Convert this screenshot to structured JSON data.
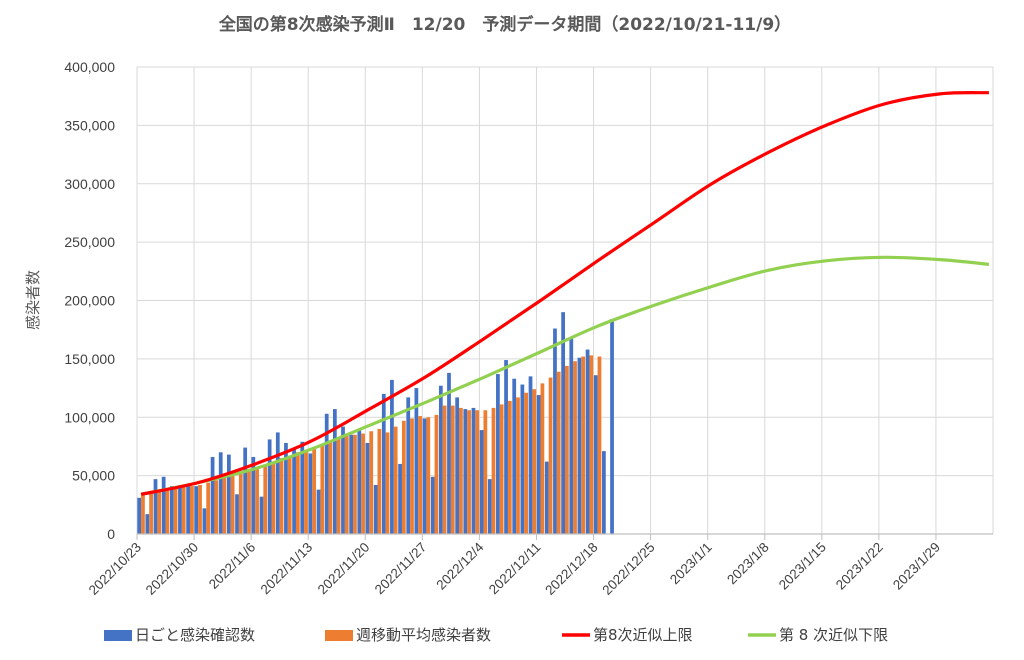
{
  "chart_data": {
    "type": "bar+line",
    "title": "全国の第8次感染予測Ⅱ　12/20　予測データ期間（2022/10/21-11/9）",
    "ylabel": "感染者数",
    "ylim": [
      0,
      400000
    ],
    "y_ticks": [
      "0",
      "50,000",
      "100,000",
      "150,000",
      "200,000",
      "250,000",
      "300,000",
      "350,000",
      "400,000"
    ],
    "x_range": [
      "2022/10/23",
      "2023/2/4"
    ],
    "x_tick_labels": [
      "2022/10/23",
      "2022/10/30",
      "2022/11/6",
      "2022/11/13",
      "2022/11/20",
      "2022/11/27",
      "2022/12/4",
      "2022/12/11",
      "2022/12/18",
      "2022/12/25",
      "2023/1/1",
      "2023/1/8",
      "2023/1/15",
      "2023/1/22",
      "2023/1/29"
    ],
    "grid": true,
    "legend_position": "bottom",
    "colors": {
      "daily": "#4472C4",
      "weekly_avg": "#ED7D31",
      "upper": "#FF0000",
      "lower": "#92D050",
      "grid": "#D9D9D9",
      "axis": "#BFBFBF"
    },
    "series": [
      {
        "name": "日ごと感染確認数",
        "kind": "bar",
        "dates": [
          "2022/10/23",
          "2022/10/24",
          "2022/10/25",
          "2022/10/26",
          "2022/10/27",
          "2022/10/28",
          "2022/10/29",
          "2022/10/30",
          "2022/10/31",
          "2022/11/1",
          "2022/11/2",
          "2022/11/3",
          "2022/11/4",
          "2022/11/5",
          "2022/11/6",
          "2022/11/7",
          "2022/11/8",
          "2022/11/9",
          "2022/11/10",
          "2022/11/11",
          "2022/11/12",
          "2022/11/13",
          "2022/11/14",
          "2022/11/15",
          "2022/11/16",
          "2022/11/17",
          "2022/11/18",
          "2022/11/19",
          "2022/11/20",
          "2022/11/21",
          "2022/11/22",
          "2022/11/23",
          "2022/11/24",
          "2022/11/25",
          "2022/11/26",
          "2022/11/27",
          "2022/11/28",
          "2022/11/29",
          "2022/11/30",
          "2022/12/1",
          "2022/12/2",
          "2022/12/3",
          "2022/12/4",
          "2022/12/5",
          "2022/12/6",
          "2022/12/7",
          "2022/12/8",
          "2022/12/9",
          "2022/12/10",
          "2022/12/11",
          "2022/12/12",
          "2022/12/13",
          "2022/12/14",
          "2022/12/15",
          "2022/12/16",
          "2022/12/17",
          "2022/12/18",
          "2022/12/19",
          "2022/12/20"
        ],
        "values": [
          31000,
          17000,
          47000,
          49000,
          41000,
          42000,
          42000,
          41000,
          22000,
          66000,
          70000,
          68000,
          34000,
          74000,
          66000,
          32000,
          81000,
          87000,
          78000,
          73000,
          79000,
          69000,
          38000,
          103000,
          107000,
          92000,
          85000,
          89000,
          78000,
          42000,
          120000,
          132000,
          60000,
          117000,
          125000,
          99000,
          49000,
          127000,
          138000,
          117000,
          107000,
          108000,
          89000,
          47000,
          137000,
          149000,
          133000,
          128000,
          135000,
          119000,
          62000,
          176000,
          190000,
          168000,
          151000,
          158000,
          136000,
          71000,
          184000
        ]
      },
      {
        "name": "週移動平均感染者数",
        "kind": "bar",
        "dates": [
          "2022/10/23",
          "2022/10/24",
          "2022/10/25",
          "2022/10/26",
          "2022/10/27",
          "2022/10/28",
          "2022/10/29",
          "2022/10/30",
          "2022/10/31",
          "2022/11/1",
          "2022/11/2",
          "2022/11/3",
          "2022/11/4",
          "2022/11/5",
          "2022/11/6",
          "2022/11/7",
          "2022/11/8",
          "2022/11/9",
          "2022/11/10",
          "2022/11/11",
          "2022/11/12",
          "2022/11/13",
          "2022/11/14",
          "2022/11/15",
          "2022/11/16",
          "2022/11/17",
          "2022/11/18",
          "2022/11/19",
          "2022/11/20",
          "2022/11/21",
          "2022/11/22",
          "2022/11/23",
          "2022/11/24",
          "2022/11/25",
          "2022/11/26",
          "2022/11/27",
          "2022/11/28",
          "2022/11/29",
          "2022/11/30",
          "2022/12/1",
          "2022/12/2",
          "2022/12/3",
          "2022/12/4",
          "2022/12/5",
          "2022/12/6",
          "2022/12/7",
          "2022/12/8",
          "2022/12/9",
          "2022/12/10",
          "2022/12/11",
          "2022/12/12",
          "2022/12/13",
          "2022/12/14",
          "2022/12/15",
          "2022/12/16",
          "2022/12/17",
          "2022/12/18"
        ],
        "values": [
          35000,
          36000,
          37000,
          38000,
          39000,
          40000,
          41000,
          42000,
          44000,
          46000,
          48000,
          50000,
          52000,
          54000,
          56000,
          59000,
          62000,
          65000,
          67000,
          70000,
          72000,
          74000,
          76000,
          79000,
          82000,
          84000,
          85000,
          86000,
          88000,
          90000,
          87000,
          92000,
          97000,
          99000,
          101000,
          100000,
          102000,
          110000,
          110000,
          108000,
          106000,
          106000,
          106000,
          108000,
          111000,
          114000,
          117000,
          121000,
          124000,
          129000,
          134000,
          139000,
          144000,
          148000,
          152000,
          153000,
          152000
        ]
      },
      {
        "name": "第8次近似上限",
        "kind": "line",
        "points": [
          [
            "2022/10/23",
            34000
          ],
          [
            "2022/10/30",
            44000
          ],
          [
            "2022/11/6",
            60000
          ],
          [
            "2022/11/13",
            80000
          ],
          [
            "2022/11/20",
            107000
          ],
          [
            "2022/11/27",
            135000
          ],
          [
            "2022/12/4",
            167000
          ],
          [
            "2022/12/11",
            200000
          ],
          [
            "2022/12/18",
            234000
          ],
          [
            "2022/12/25",
            267000
          ],
          [
            "2023/1/1",
            300000
          ],
          [
            "2023/1/8",
            327000
          ],
          [
            "2023/1/15",
            350000
          ],
          [
            "2023/1/22",
            368000
          ],
          [
            "2023/1/29",
            377000
          ],
          [
            "2023/2/4",
            378000
          ]
        ]
      },
      {
        "name": "第 8 次近似下限",
        "kind": "line",
        "points": [
          [
            "2022/10/23",
            34000
          ],
          [
            "2022/10/30",
            44000
          ],
          [
            "2022/11/6",
            56000
          ],
          [
            "2022/11/13",
            73000
          ],
          [
            "2022/11/20",
            93000
          ],
          [
            "2022/11/27",
            113000
          ],
          [
            "2022/12/4",
            134000
          ],
          [
            "2022/12/11",
            156000
          ],
          [
            "2022/12/18",
            178000
          ],
          [
            "2022/12/25",
            196000
          ],
          [
            "2023/1/1",
            212000
          ],
          [
            "2023/1/8",
            226000
          ],
          [
            "2023/1/15",
            234000
          ],
          [
            "2023/1/22",
            237000
          ],
          [
            "2023/1/29",
            235000
          ],
          [
            "2023/2/4",
            231000
          ]
        ]
      }
    ]
  }
}
